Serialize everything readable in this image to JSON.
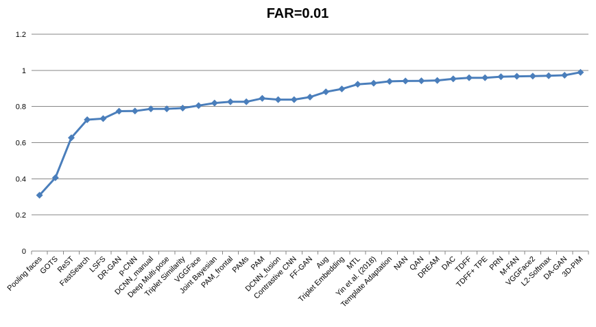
{
  "chart_data": {
    "type": "line",
    "title": "FAR=0.01",
    "xlabel": "",
    "ylabel": "",
    "ylim": [
      0,
      1.2
    ],
    "yticks": [
      0,
      0.2,
      0.4,
      0.6,
      0.8,
      1,
      1.2
    ],
    "ytick_labels": [
      "0",
      "0.2",
      "0.4",
      "0.6",
      "0.8",
      "1",
      "1.2"
    ],
    "grid": true,
    "legend": "none",
    "line_color": "#4a7ebb",
    "categories": [
      "Pooling faces",
      "GOTS",
      "ReST",
      "FastSearch",
      "LSFS",
      "DR-GAN",
      "p-CNN",
      "DCNN_manual",
      "Deep Multi-pose",
      "Triplet Similarity",
      "VGGFace",
      "Joint Bayesian",
      "PAM_frontal",
      "PAMs",
      "PAM",
      "DCNN_fusion",
      "Contrastive CNN",
      "FF-GAN",
      "Aug",
      "Triplet Embedding",
      "MTL",
      "Yin et al. (2018)",
      "Template Adaptation",
      "NAN",
      "QAN",
      "DREAM",
      "DAC",
      "TDFF",
      "TDFF+ TPE",
      "PRN",
      "M-FAN",
      "VGGFace2",
      "L2-Softmax",
      "DA-GAN",
      "3D-PIM"
    ],
    "series": [
      {
        "values": [
          0.309,
          0.406,
          0.627,
          0.727,
          0.733,
          0.774,
          0.775,
          0.787,
          0.787,
          0.791,
          0.805,
          0.819,
          0.826,
          0.826,
          0.845,
          0.838,
          0.838,
          0.852,
          0.881,
          0.897,
          0.923,
          0.929,
          0.939,
          0.941,
          0.942,
          0.944,
          0.953,
          0.959,
          0.959,
          0.965,
          0.967,
          0.968,
          0.97,
          0.973,
          0.989
        ]
      }
    ]
  }
}
